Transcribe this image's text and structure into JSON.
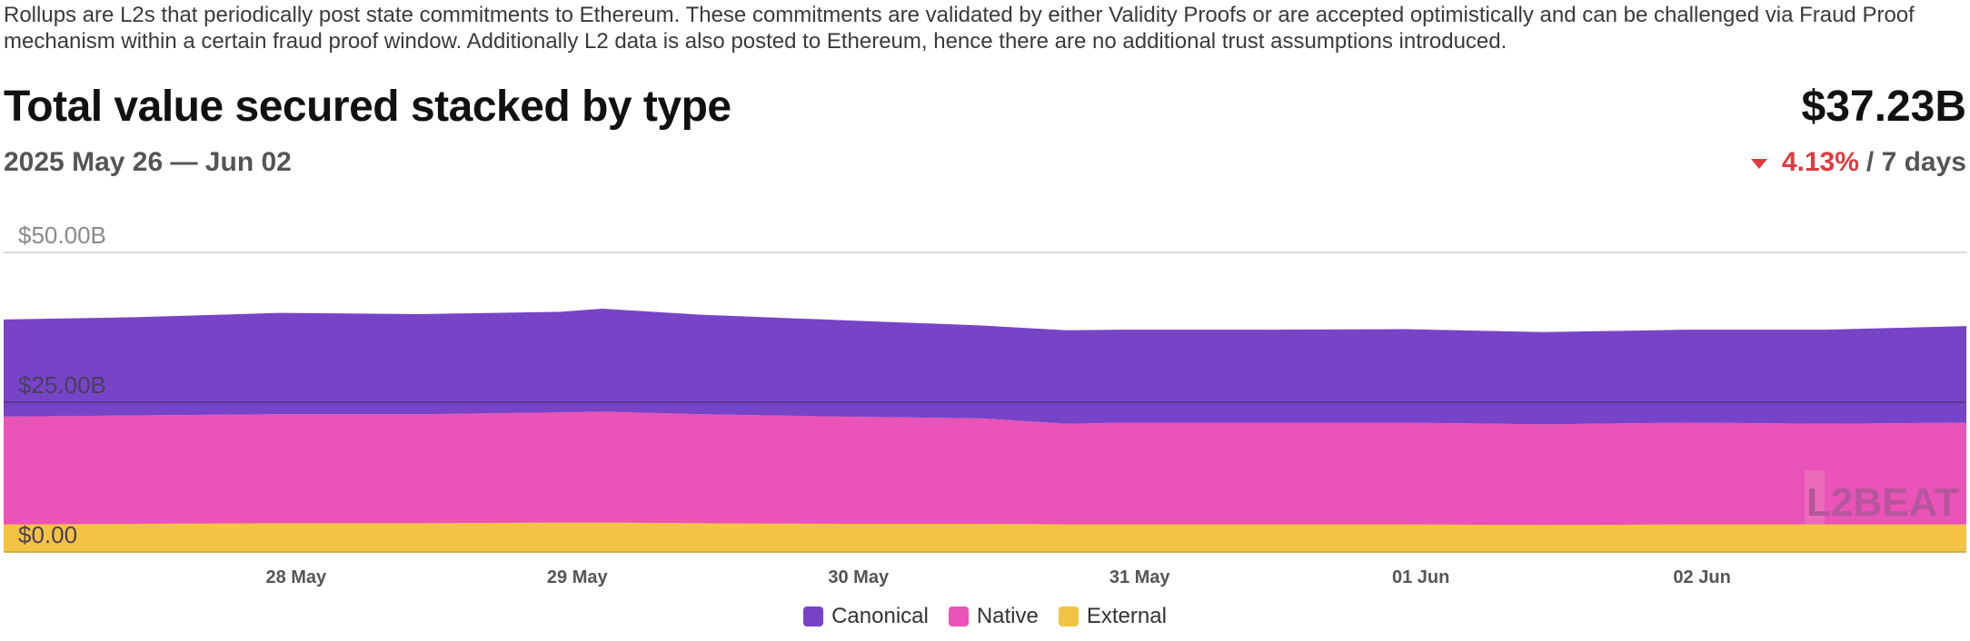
{
  "description": "Rollups are L2s that periodically post state commitments to Ethereum. These commitments are validated by either Validity Proofs or are accepted optimistically and can be challenged via Fraud Proof mechanism within a certain fraud proof window. Additionally L2 data is also posted to Ethereum, hence there are no additional trust assumptions introduced.",
  "header": {
    "title": "Total value secured stacked by type",
    "total": "$37.23B",
    "date_range": "2025 May 26 — Jun 02",
    "change_pct": "4.13%",
    "change_period": "/ 7 days",
    "change_direction": "down"
  },
  "watermark": "L2BEAT",
  "colors": {
    "canonical": "#7744c7",
    "native": "#ea53b7",
    "external": "#f5c343",
    "down": "#e0393e"
  },
  "chart_data": {
    "type": "area",
    "stacked": true,
    "y_ticks": [
      "$0.00",
      "$25.00B",
      "$50.00B"
    ],
    "y_tick_values": [
      0,
      25,
      50
    ],
    "ylim": [
      0,
      50
    ],
    "y_unit": "B USD",
    "x_ticks": [
      "28 May",
      "29 May",
      "30 May",
      "31 May",
      "01 Jun",
      "02 Jun"
    ],
    "x_tick_days": [
      1.06,
      2.06,
      3.06,
      4.06,
      5.06,
      6.06
    ],
    "x_range_days": [
      0.02,
      7.0
    ],
    "x_start_label": "2025 May 26",
    "x": [
      0.02,
      0.5,
      1.0,
      1.5,
      2.0,
      2.15,
      2.5,
      3.0,
      3.5,
      3.8,
      4.0,
      4.5,
      5.0,
      5.5,
      6.0,
      6.5,
      7.0
    ],
    "series": [
      {
        "name": "External",
        "values": [
          4.6,
          4.7,
          4.8,
          4.8,
          4.9,
          4.9,
          4.8,
          4.7,
          4.7,
          4.6,
          4.6,
          4.6,
          4.6,
          4.5,
          4.6,
          4.6,
          4.6
        ]
      },
      {
        "name": "Native",
        "values": [
          18.0,
          18.1,
          18.2,
          18.2,
          18.4,
          18.5,
          18.2,
          17.9,
          17.6,
          16.8,
          17.0,
          17.0,
          17.0,
          16.8,
          17.0,
          16.8,
          17.0
        ]
      },
      {
        "name": "Canonical",
        "values": [
          16.2,
          16.4,
          16.9,
          16.7,
          16.8,
          17.2,
          16.6,
          16.1,
          15.5,
          15.6,
          15.5,
          15.5,
          15.6,
          15.4,
          15.5,
          15.7,
          16.1
        ]
      }
    ],
    "legend": [
      "Canonical",
      "Native",
      "External"
    ],
    "legend_position": "bottom-center",
    "grid": true
  }
}
